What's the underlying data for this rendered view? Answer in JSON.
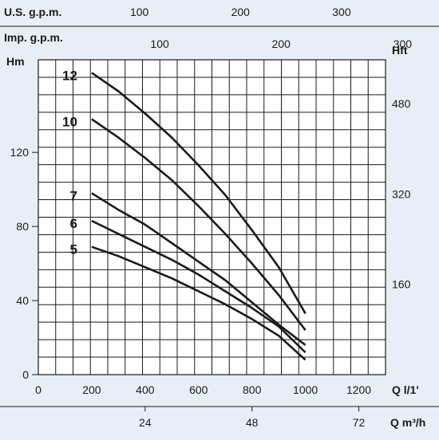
{
  "chart_data": {
    "type": "line",
    "colors": {
      "background": "#e8eef6",
      "plot_background": "#ffffff",
      "grid": "#1a1a1a",
      "curve": "#1a1a1a"
    },
    "x_axis": {
      "label": "Q l/1'",
      "ticks": [
        "0",
        "200",
        "400",
        "600",
        "800",
        "1000",
        "1200"
      ],
      "range": [
        0,
        1300
      ]
    },
    "x_axis_m3h": {
      "label": "Q m³/h",
      "ticks": [
        "24",
        "48",
        "72"
      ],
      "values": [
        24,
        48,
        72
      ]
    },
    "top_axis_usgpm": {
      "label": "U.S. g.p.m.",
      "ticks": [
        "100",
        "200",
        "300"
      ],
      "values": [
        100,
        200,
        300
      ]
    },
    "top_axis_impgpm": {
      "label": "Imp. g.p.m.",
      "ticks": [
        "100",
        "200",
        "300"
      ],
      "values": [
        100,
        200,
        300
      ]
    },
    "y_axis": {
      "label": "Hm",
      "ticks": [
        "0",
        "40",
        "80",
        "120"
      ],
      "range": [
        0,
        170
      ]
    },
    "y_axis_right": {
      "label": "Hft",
      "ticks": [
        "160",
        "320",
        "480"
      ],
      "values": [
        160,
        320,
        480
      ]
    },
    "grid": true,
    "series": [
      {
        "name": "12",
        "x": [
          200,
          300,
          400,
          500,
          600,
          700,
          800,
          900,
          1000
        ],
        "y": [
          163,
          153,
          141,
          128,
          113,
          97,
          78,
          58,
          33
        ]
      },
      {
        "name": "10",
        "x": [
          200,
          300,
          400,
          500,
          600,
          700,
          800,
          900,
          1000
        ],
        "y": [
          138,
          128,
          117,
          105,
          91,
          76,
          60,
          43,
          24
        ]
      },
      {
        "name": "7",
        "x": [
          200,
          300,
          400,
          500,
          600,
          700,
          800,
          900,
          1000
        ],
        "y": [
          98,
          89,
          81,
          71,
          61,
          51,
          39,
          27,
          16
        ]
      },
      {
        "name": "6",
        "x": [
          200,
          300,
          400,
          500,
          600,
          700,
          800,
          900,
          1000
        ],
        "y": [
          83,
          76,
          69,
          62,
          54,
          45,
          36,
          26,
          12
        ]
      },
      {
        "name": "5",
        "x": [
          200,
          300,
          400,
          500,
          600,
          700,
          800,
          900,
          1000
        ],
        "y": [
          69,
          64,
          58,
          52,
          45,
          38,
          30,
          21,
          8
        ]
      }
    ]
  }
}
